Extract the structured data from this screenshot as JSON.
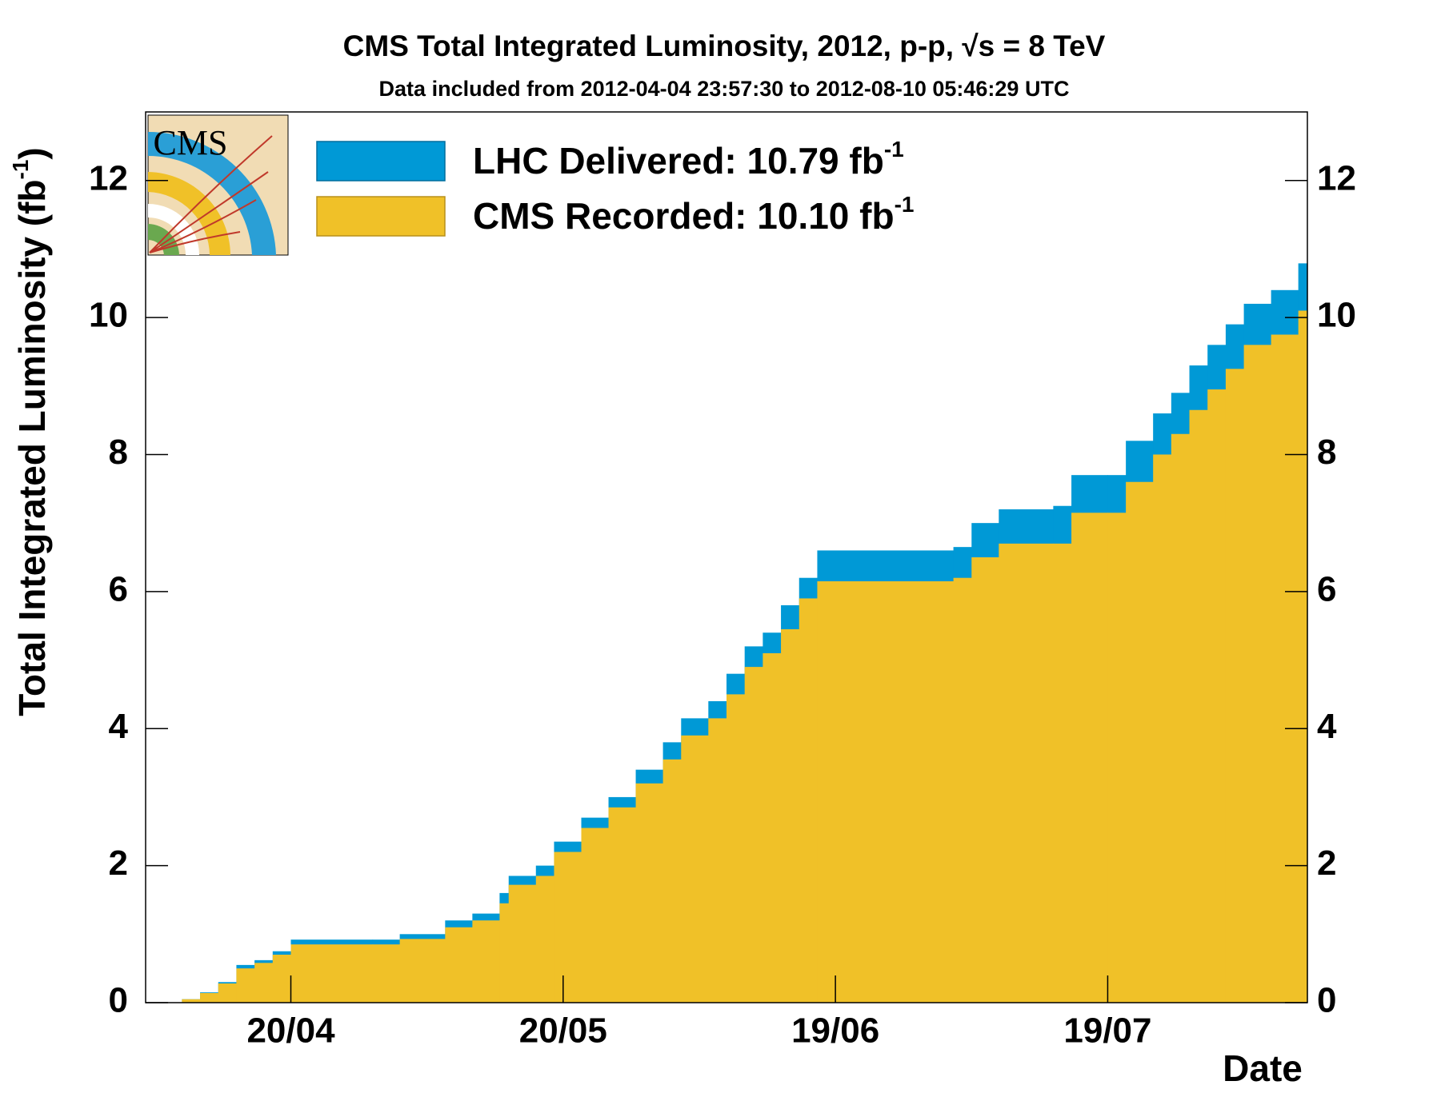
{
  "chart_data": {
    "type": "step-area",
    "title": "CMS Total Integrated Luminosity, 2012, p-p,   √s = 8 TeV",
    "subtitle": "Data included from 2012-04-04 23:57:30 to 2012-08-10 05:46:29 UTC",
    "logo_text": "CMS",
    "y_label": "Total Integrated Luminosity (fb",
    "y_label_superscript": "-1",
    "y_label_end": ")",
    "x_label": "Date",
    "x": [
      "07/04",
      "08/04",
      "10/04",
      "12/04",
      "14/04",
      "16/04",
      "18/04",
      "20/04",
      "29/04",
      "02/05",
      "07/05",
      "10/05",
      "13/05",
      "14/05",
      "17/05",
      "19/05",
      "22/05",
      "25/05",
      "28/05",
      "31/05",
      "02/06",
      "05/06",
      "07/06",
      "09/06",
      "11/06",
      "13/06",
      "15/06",
      "17/06",
      "02/07",
      "04/07",
      "07/07",
      "13/07",
      "15/07",
      "19/07",
      "21/07",
      "24/07",
      "26/07",
      "28/07",
      "30/07",
      "01/08",
      "03/08",
      "06/08",
      "09/08"
    ],
    "series": [
      {
        "name": "LHC Delivered: 10.79 fb",
        "name_superscript": "-1",
        "color": "#0099d6",
        "values": [
          0,
          0.05,
          0.15,
          0.3,
          0.55,
          0.62,
          0.75,
          0.92,
          0.92,
          1.0,
          1.2,
          1.3,
          1.6,
          1.85,
          2.0,
          2.35,
          2.7,
          3.0,
          3.4,
          3.8,
          4.15,
          4.4,
          4.8,
          5.2,
          5.4,
          5.8,
          6.2,
          6.6,
          6.65,
          7.0,
          7.2,
          7.25,
          7.7,
          7.7,
          8.2,
          8.6,
          8.9,
          9.3,
          9.6,
          9.9,
          10.2,
          10.4,
          10.79
        ]
      },
      {
        "name": "CMS Recorded: 10.10 fb",
        "name_superscript": "-1",
        "color": "#f0c128",
        "values": [
          0,
          0.05,
          0.14,
          0.28,
          0.5,
          0.58,
          0.7,
          0.85,
          0.85,
          0.93,
          1.1,
          1.2,
          1.45,
          1.72,
          1.85,
          2.2,
          2.55,
          2.85,
          3.2,
          3.55,
          3.9,
          4.15,
          4.5,
          4.9,
          5.1,
          5.45,
          5.9,
          6.15,
          6.2,
          6.5,
          6.7,
          6.7,
          7.15,
          7.15,
          7.6,
          8.0,
          8.3,
          8.65,
          8.95,
          9.25,
          9.6,
          9.75,
          10.1
        ]
      }
    ],
    "xlim": [
      "04/04",
      "10/08"
    ],
    "xticks": [
      "20/04",
      "20/05",
      "19/06",
      "19/07"
    ],
    "ylim": [
      0,
      13
    ],
    "yticks": [
      0,
      2,
      4,
      6,
      8,
      10,
      12
    ],
    "right_axis": true,
    "grid": false
  }
}
